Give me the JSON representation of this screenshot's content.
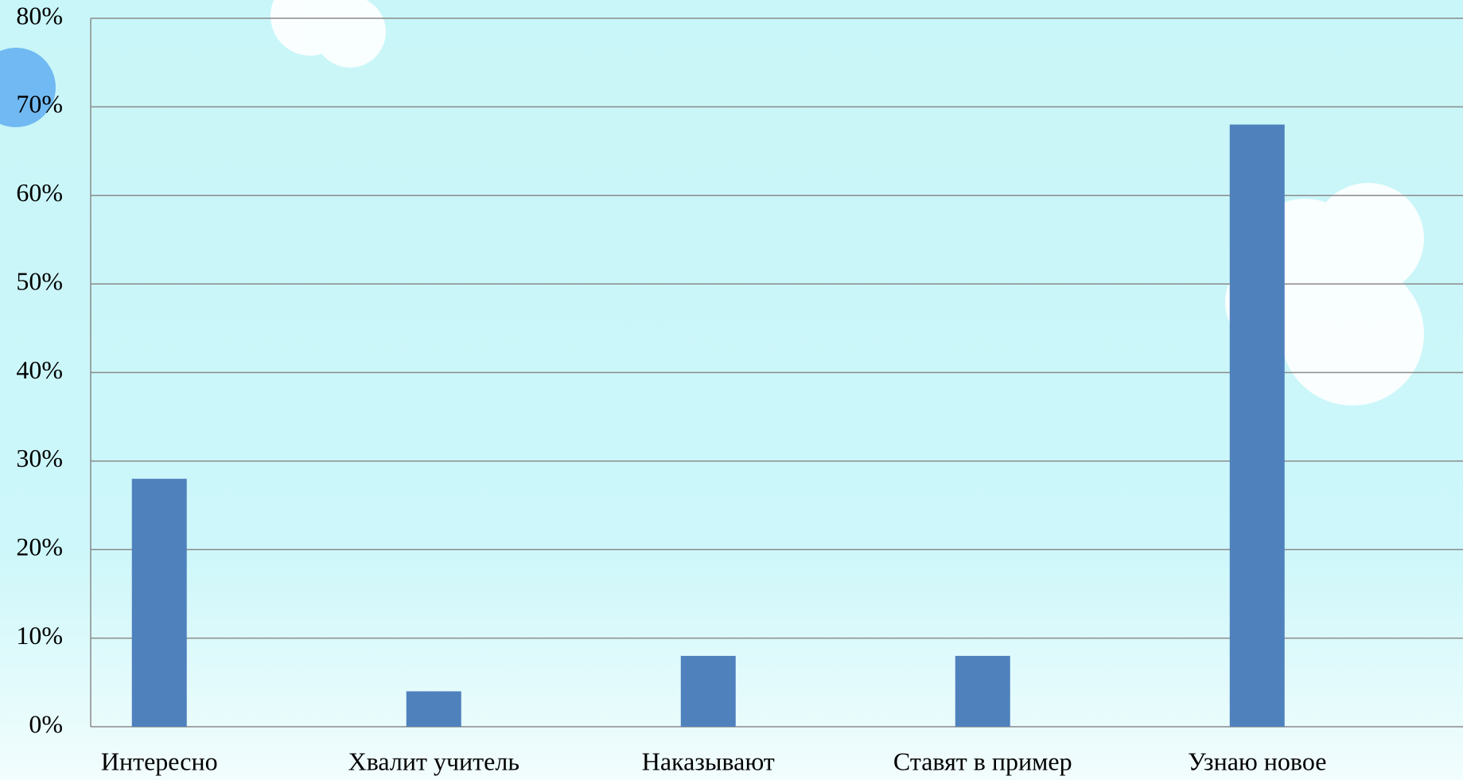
{
  "chart_data": {
    "type": "bar",
    "categories": [
      "Интересно",
      "Хвалит учитель",
      "Наказывают",
      "Ставят в пример",
      "Узнаю новое"
    ],
    "values": [
      28,
      4,
      8,
      8,
      68
    ],
    "color": "#4f81bd",
    "ylim": [
      0,
      80
    ],
    "yticks": [
      {
        "value": 0,
        "label": "0%"
      },
      {
        "value": 10,
        "label": "10%"
      },
      {
        "value": 20,
        "label": "20%"
      },
      {
        "value": 30,
        "label": "30%"
      },
      {
        "value": 40,
        "label": "40%"
      },
      {
        "value": 50,
        "label": "50%"
      },
      {
        "value": 60,
        "label": "60%"
      },
      {
        "value": 70,
        "label": "70%"
      },
      {
        "value": 80,
        "label": "80%"
      }
    ],
    "grid": true
  }
}
